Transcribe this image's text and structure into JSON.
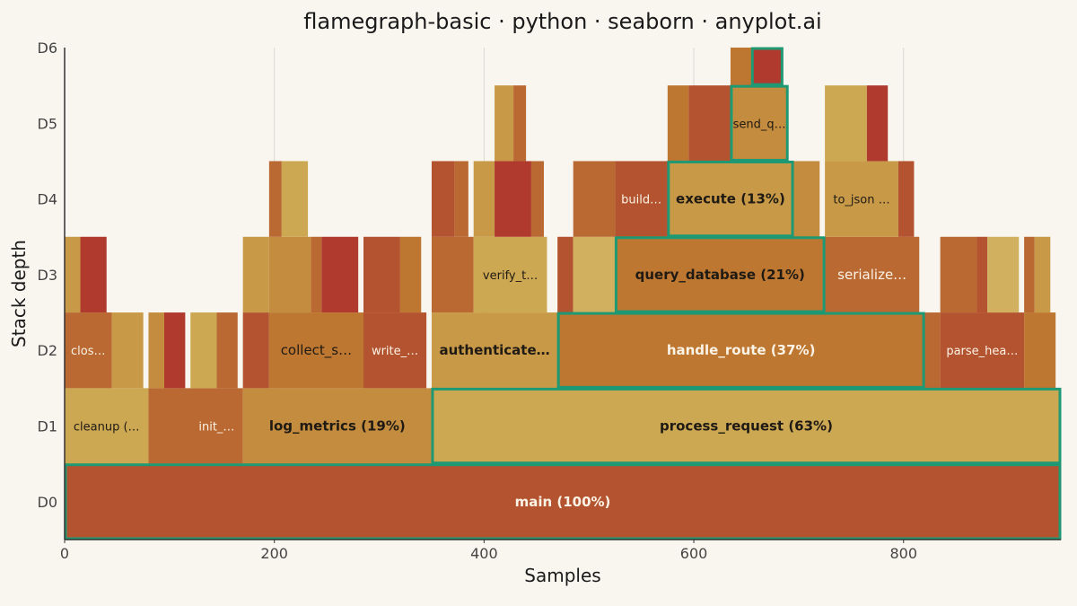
{
  "chart_data": {
    "type": "flamegraph",
    "title": "flamegraph-basic · python · seaborn · anyplot.ai",
    "xlabel": "Samples",
    "ylabel": "Stack depth",
    "xlim": [
      0,
      950
    ],
    "xticks": [
      0,
      200,
      400,
      600,
      800
    ],
    "levels": [
      "D0",
      "D1",
      "D2",
      "D3",
      "D4",
      "D5",
      "D6"
    ],
    "grid": "vertical",
    "colors": {
      "red": "#b03a2e",
      "rust": "#b4532f",
      "copper": "#ba6933",
      "orange": "#bd7731",
      "amber": "#c48c3e",
      "tan": "#c89a48",
      "gold": "#cda853",
      "light": "#d1b060",
      "highlight": "#1e9973",
      "text_dark": "#1f1a14",
      "text_light": "#fbf3e6"
    },
    "frames": [
      {
        "depth": 0,
        "start": 0,
        "end": 950,
        "fill": "rust",
        "label": "main (100%)",
        "bold": true,
        "text": "light",
        "highlight": true
      },
      {
        "depth": 1,
        "start": 0,
        "end": 80,
        "fill": "gold",
        "label": "cleanup (…",
        "text": "dark"
      },
      {
        "depth": 1,
        "start": 80,
        "end": 170,
        "fill": "copper",
        "label": "init_…",
        "text": "light",
        "label_at": 145
      },
      {
        "depth": 1,
        "start": 170,
        "end": 350,
        "fill": "amber",
        "label": "log_metrics (19%)",
        "bold": true,
        "text": "dark"
      },
      {
        "depth": 1,
        "start": 350,
        "end": 950,
        "fill": "gold",
        "label": "process_request (63%)",
        "bold": true,
        "text": "dark",
        "highlight": true
      },
      {
        "depth": 2,
        "start": 0,
        "end": 45,
        "fill": "copper",
        "label": "clos…",
        "text": "light"
      },
      {
        "depth": 2,
        "start": 45,
        "end": 75,
        "fill": "tan",
        "label": ""
      },
      {
        "depth": 2,
        "start": 80,
        "end": 95,
        "fill": "amber",
        "label": ""
      },
      {
        "depth": 2,
        "start": 95,
        "end": 115,
        "fill": "red",
        "label": ""
      },
      {
        "depth": 2,
        "start": 120,
        "end": 145,
        "fill": "gold",
        "label": ""
      },
      {
        "depth": 2,
        "start": 145,
        "end": 165,
        "fill": "copper",
        "label": ""
      },
      {
        "depth": 2,
        "start": 170,
        "end": 195,
        "fill": "rust",
        "label": ""
      },
      {
        "depth": 2,
        "start": 195,
        "end": 285,
        "fill": "orange",
        "label": "collect_s…",
        "text": "dark",
        "size": 15
      },
      {
        "depth": 2,
        "start": 285,
        "end": 345,
        "fill": "rust",
        "label": "write_…",
        "text": "light"
      },
      {
        "depth": 2,
        "start": 350,
        "end": 470,
        "fill": "tan",
        "label": "authenticate…",
        "bold": true,
        "text": "dark"
      },
      {
        "depth": 2,
        "start": 470,
        "end": 820,
        "fill": "orange",
        "label": "handle_route (37%)",
        "bold": true,
        "text": "light",
        "highlight": true
      },
      {
        "depth": 2,
        "start": 820,
        "end": 835,
        "fill": "copper",
        "label": ""
      },
      {
        "depth": 2,
        "start": 835,
        "end": 915,
        "fill": "rust",
        "label": "parse_hea…",
        "text": "light"
      },
      {
        "depth": 2,
        "start": 915,
        "end": 945,
        "fill": "orange",
        "label": ""
      },
      {
        "depth": 3,
        "start": 0,
        "end": 15,
        "fill": "tan",
        "label": ""
      },
      {
        "depth": 3,
        "start": 15,
        "end": 40,
        "fill": "red",
        "label": ""
      },
      {
        "depth": 3,
        "start": 170,
        "end": 195,
        "fill": "tan",
        "label": ""
      },
      {
        "depth": 3,
        "start": 195,
        "end": 235,
        "fill": "amber",
        "label": ""
      },
      {
        "depth": 3,
        "start": 235,
        "end": 245,
        "fill": "copper",
        "label": ""
      },
      {
        "depth": 3,
        "start": 245,
        "end": 280,
        "fill": "red",
        "label": ""
      },
      {
        "depth": 3,
        "start": 285,
        "end": 320,
        "fill": "rust",
        "label": ""
      },
      {
        "depth": 3,
        "start": 320,
        "end": 340,
        "fill": "orange",
        "label": ""
      },
      {
        "depth": 3,
        "start": 350,
        "end": 390,
        "fill": "copper",
        "label": ""
      },
      {
        "depth": 3,
        "start": 390,
        "end": 460,
        "fill": "gold",
        "label": "verify_t…",
        "text": "dark"
      },
      {
        "depth": 3,
        "start": 470,
        "end": 485,
        "fill": "rust",
        "label": ""
      },
      {
        "depth": 3,
        "start": 485,
        "end": 525,
        "fill": "light",
        "label": ""
      },
      {
        "depth": 3,
        "start": 525,
        "end": 725,
        "fill": "orange",
        "label": "query_database (21%)",
        "bold": true,
        "text": "dark",
        "highlight": true
      },
      {
        "depth": 3,
        "start": 725,
        "end": 815,
        "fill": "copper",
        "label": "serialize…",
        "text": "light",
        "size": 15
      },
      {
        "depth": 3,
        "start": 835,
        "end": 870,
        "fill": "copper",
        "label": ""
      },
      {
        "depth": 3,
        "start": 870,
        "end": 880,
        "fill": "rust",
        "label": ""
      },
      {
        "depth": 3,
        "start": 880,
        "end": 910,
        "fill": "light",
        "label": ""
      },
      {
        "depth": 3,
        "start": 915,
        "end": 925,
        "fill": "copper",
        "label": ""
      },
      {
        "depth": 3,
        "start": 925,
        "end": 940,
        "fill": "tan",
        "label": ""
      },
      {
        "depth": 4,
        "start": 195,
        "end": 207,
        "fill": "copper",
        "label": ""
      },
      {
        "depth": 4,
        "start": 207,
        "end": 232,
        "fill": "gold",
        "label": ""
      },
      {
        "depth": 4,
        "start": 350,
        "end": 372,
        "fill": "rust",
        "label": ""
      },
      {
        "depth": 4,
        "start": 372,
        "end": 385,
        "fill": "copper",
        "label": ""
      },
      {
        "depth": 4,
        "start": 390,
        "end": 410,
        "fill": "tan",
        "label": ""
      },
      {
        "depth": 4,
        "start": 410,
        "end": 445,
        "fill": "red",
        "label": ""
      },
      {
        "depth": 4,
        "start": 445,
        "end": 457,
        "fill": "copper",
        "label": ""
      },
      {
        "depth": 4,
        "start": 485,
        "end": 525,
        "fill": "copper",
        "label": ""
      },
      {
        "depth": 4,
        "start": 525,
        "end": 575,
        "fill": "rust",
        "label": "build…",
        "text": "light"
      },
      {
        "depth": 4,
        "start": 575,
        "end": 695,
        "fill": "tan",
        "label": "execute (13%)",
        "bold": true,
        "text": "dark",
        "highlight": true
      },
      {
        "depth": 4,
        "start": 695,
        "end": 720,
        "fill": "amber",
        "label": ""
      },
      {
        "depth": 4,
        "start": 725,
        "end": 795,
        "fill": "tan",
        "label": "to_json …",
        "text": "dark"
      },
      {
        "depth": 4,
        "start": 795,
        "end": 810,
        "fill": "rust",
        "label": ""
      },
      {
        "depth": 5,
        "start": 410,
        "end": 428,
        "fill": "tan",
        "label": ""
      },
      {
        "depth": 5,
        "start": 428,
        "end": 440,
        "fill": "copper",
        "label": ""
      },
      {
        "depth": 5,
        "start": 575,
        "end": 595,
        "fill": "orange",
        "label": ""
      },
      {
        "depth": 5,
        "start": 595,
        "end": 635,
        "fill": "rust",
        "label": ""
      },
      {
        "depth": 5,
        "start": 635,
        "end": 690,
        "fill": "amber",
        "label": "send_q…",
        "text": "dark",
        "highlight": true
      },
      {
        "depth": 5,
        "start": 725,
        "end": 765,
        "fill": "gold",
        "label": ""
      },
      {
        "depth": 5,
        "start": 765,
        "end": 785,
        "fill": "red",
        "label": ""
      },
      {
        "depth": 6,
        "start": 635,
        "end": 655,
        "fill": "orange",
        "label": ""
      },
      {
        "depth": 6,
        "start": 655,
        "end": 685,
        "fill": "red",
        "label": "",
        "highlight": true
      }
    ]
  }
}
